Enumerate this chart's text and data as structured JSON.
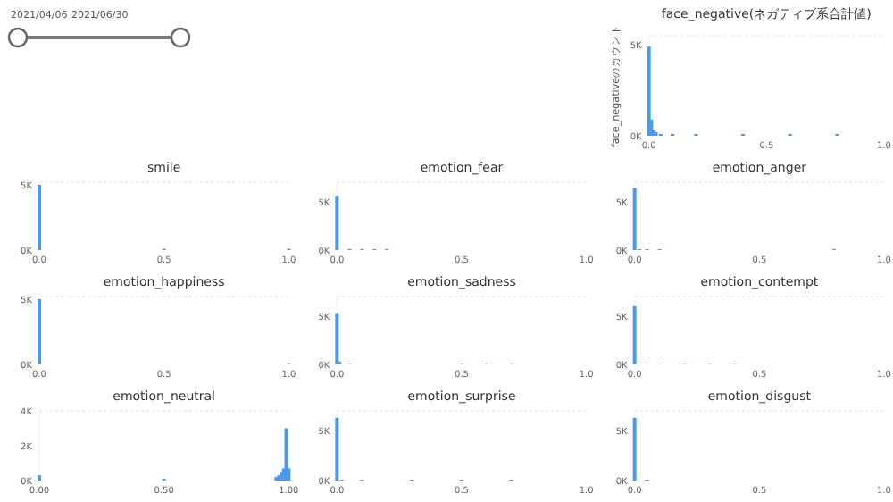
{
  "chart_data": [
    {
      "type": "other",
      "annotations": [
        "2021/04/06",
        "2021/06/30"
      ]
    },
    {
      "type": "bar",
      "title": "face_negative(ネガティブ系合計値)",
      "ylabel": "face_negativeのカウント",
      "x": [
        0,
        0.01,
        0.02,
        0.03,
        0.05,
        0.1,
        0.2,
        0.4,
        0.6,
        0.8
      ],
      "values": [
        4900,
        900,
        300,
        200,
        100,
        100,
        100,
        100,
        100,
        100
      ],
      "color": "#4a9ae8",
      "xlim": [
        0,
        1
      ],
      "xticks": [
        {
          "value": 0,
          "label": "0.0"
        },
        {
          "value": 0.5,
          "label": "0.5"
        },
        {
          "value": 1,
          "label": "1.0"
        }
      ],
      "ylim": [
        0,
        5500
      ],
      "yticks": [
        {
          "value": 0,
          "label": "0K"
        },
        {
          "value": 5000,
          "label": "5K"
        }
      ]
    },
    {
      "type": "bar",
      "title": "smile",
      "x": [
        0,
        0.5,
        1
      ],
      "values": [
        5000,
        100,
        100
      ],
      "color": "#4a9ae8",
      "xlim": [
        0,
        1
      ],
      "xticks": [
        {
          "value": 0,
          "label": "0.0"
        },
        {
          "value": 0.5,
          "label": "0.5"
        },
        {
          "value": 1,
          "label": "1.0"
        }
      ],
      "ylim": [
        0,
        5200
      ],
      "yticks": [
        {
          "value": 0,
          "label": "0K"
        },
        {
          "value": 5000,
          "label": "5K"
        }
      ]
    },
    {
      "type": "bar",
      "title": "emotion_fear",
      "x": [
        0,
        0.05,
        0.1,
        0.15,
        0.2
      ],
      "values": [
        5600,
        100,
        100,
        100,
        100
      ],
      "color": "#4a9ae8",
      "xlim": [
        0,
        1
      ],
      "xticks": [
        {
          "value": 0,
          "label": "0.0"
        },
        {
          "value": 0.5,
          "label": "0.5"
        },
        {
          "value": 1,
          "label": "1.0"
        }
      ],
      "ylim": [
        0,
        7000
      ],
      "yticks": [
        {
          "value": 0,
          "label": "0K"
        },
        {
          "value": 5000,
          "label": "5K"
        }
      ]
    },
    {
      "type": "bar",
      "title": "emotion_anger",
      "x": [
        0,
        0.02,
        0.05,
        0.1,
        0.8
      ],
      "values": [
        6400,
        100,
        100,
        100,
        100
      ],
      "color": "#4a9ae8",
      "xlim": [
        0,
        1
      ],
      "xticks": [
        {
          "value": 0,
          "label": "0.0"
        },
        {
          "value": 0.5,
          "label": "0.5"
        },
        {
          "value": 1,
          "label": "1.0"
        }
      ],
      "ylim": [
        0,
        7000
      ],
      "yticks": [
        {
          "value": 0,
          "label": "0K"
        },
        {
          "value": 5000,
          "label": "5K"
        }
      ]
    },
    {
      "type": "bar",
      "title": "emotion_happiness",
      "x": [
        0,
        1
      ],
      "values": [
        5000,
        100
      ],
      "color": "#4a9ae8",
      "xlim": [
        0,
        1
      ],
      "xticks": [
        {
          "value": 0,
          "label": "0.0"
        },
        {
          "value": 0.5,
          "label": "0.5"
        },
        {
          "value": 1,
          "label": "1.0"
        }
      ],
      "ylim": [
        0,
        5200
      ],
      "yticks": [
        {
          "value": 0,
          "label": "0K"
        },
        {
          "value": 5000,
          "label": "5K"
        }
      ]
    },
    {
      "type": "bar",
      "title": "emotion_sadness",
      "x": [
        0,
        0.01,
        0.05,
        0.5,
        0.6,
        0.7
      ],
      "values": [
        5300,
        300,
        100,
        100,
        100,
        100
      ],
      "color": "#4a9ae8",
      "xlim": [
        0,
        1
      ],
      "xticks": [
        {
          "value": 0,
          "label": "0.0"
        },
        {
          "value": 0.5,
          "label": "0.5"
        },
        {
          "value": 1,
          "label": "1.0"
        }
      ],
      "ylim": [
        0,
        7000
      ],
      "yticks": [
        {
          "value": 0,
          "label": "0K"
        },
        {
          "value": 5000,
          "label": "5K"
        }
      ]
    },
    {
      "type": "bar",
      "title": "emotion_contempt",
      "x": [
        0,
        0.02,
        0.05,
        0.1,
        0.2,
        0.3,
        0.4
      ],
      "values": [
        6000,
        100,
        100,
        100,
        100,
        100,
        100
      ],
      "color": "#4a9ae8",
      "xlim": [
        0,
        1
      ],
      "xticks": [
        {
          "value": 0,
          "label": "0.0"
        },
        {
          "value": 0.5,
          "label": "0.5"
        },
        {
          "value": 1,
          "label": "1.0"
        }
      ],
      "ylim": [
        0,
        7000
      ],
      "yticks": [
        {
          "value": 0,
          "label": "0K"
        },
        {
          "value": 5000,
          "label": "5K"
        }
      ]
    },
    {
      "type": "bar",
      "title": "emotion_neutral",
      "x": [
        0,
        0.5,
        0.95,
        0.96,
        0.97,
        0.98,
        0.99,
        1
      ],
      "values": [
        300,
        100,
        200,
        300,
        500,
        700,
        3000,
        700
      ],
      "color": "#4a9ae8",
      "xlim": [
        0,
        1
      ],
      "xticks": [
        {
          "value": 0,
          "label": "0.00"
        },
        {
          "value": 0.5,
          "label": "0.50"
        },
        {
          "value": 1,
          "label": "1.00"
        }
      ],
      "ylim": [
        0,
        4000
      ],
      "yticks": [
        {
          "value": 0,
          "label": "0K"
        },
        {
          "value": 2000,
          "label": "2K"
        },
        {
          "value": 4000,
          "label": "4K"
        }
      ]
    },
    {
      "type": "bar",
      "title": "emotion_surprise",
      "x": [
        0,
        0.02,
        0.1,
        0.3,
        0.5,
        0.7
      ],
      "values": [
        6300,
        100,
        100,
        100,
        100,
        100
      ],
      "color": "#4a9ae8",
      "xlim": [
        0,
        1
      ],
      "xticks": [
        {
          "value": 0,
          "label": "0.0"
        },
        {
          "value": 0.5,
          "label": "0.5"
        },
        {
          "value": 1,
          "label": "1.0"
        }
      ],
      "ylim": [
        0,
        7000
      ],
      "yticks": [
        {
          "value": 0,
          "label": "0K"
        },
        {
          "value": 5000,
          "label": "5K"
        }
      ]
    },
    {
      "type": "bar",
      "title": "emotion_disgust",
      "x": [
        0,
        0.05
      ],
      "values": [
        6300,
        100
      ],
      "color": "#4a9ae8",
      "xlim": [
        0,
        1
      ],
      "xticks": [
        {
          "value": 0,
          "label": "0.0"
        },
        {
          "value": 0.5,
          "label": "0.5"
        },
        {
          "value": 1,
          "label": "1.0"
        }
      ],
      "ylim": [
        0,
        7000
      ],
      "yticks": [
        {
          "value": 0,
          "label": "0K"
        },
        {
          "value": 5000,
          "label": "5K"
        }
      ]
    }
  ]
}
